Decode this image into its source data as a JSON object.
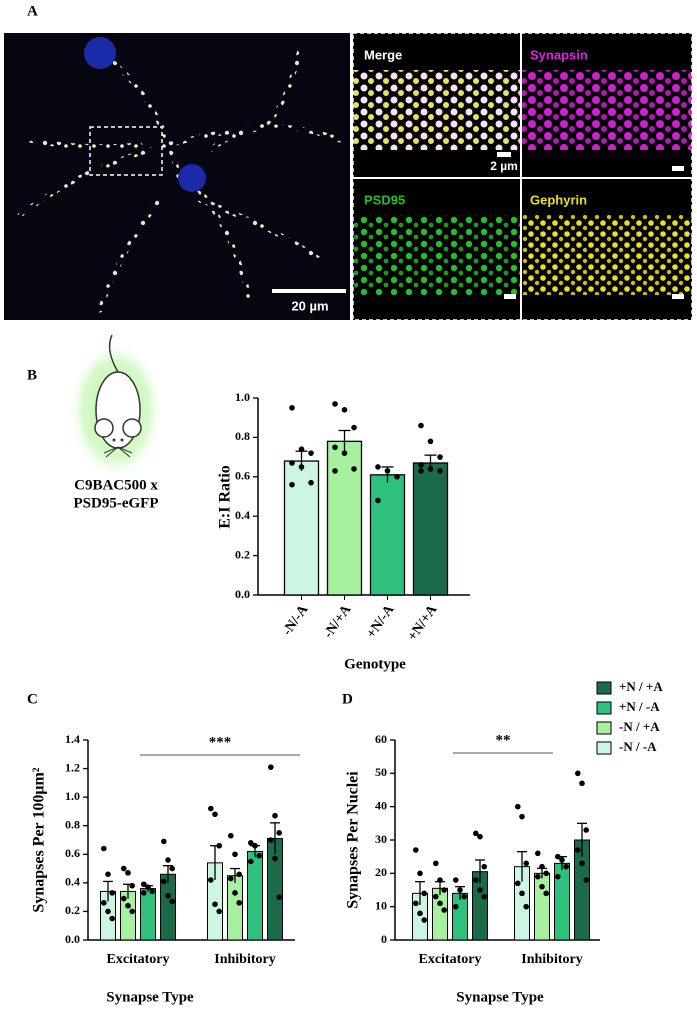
{
  "panel_labels": [
    "A",
    "B",
    "C",
    "D"
  ],
  "image_labels": {
    "merge": "Merge",
    "synapsin": "Synapsin",
    "psd95": "PSD95",
    "gephyrin": "Gephyrin",
    "scale_main": "20 µm",
    "scale_inset": "2 µm"
  },
  "mouse_caption": [
    "C9BAC500 x",
    "PSD95-eGFP"
  ],
  "chart_data": [
    {
      "type": "bar",
      "ylabel": "E:I Ratio",
      "xlabel": "Genotype",
      "categories": [
        "-N/-A",
        "-N/+A",
        "+N/-A",
        "+N/+A"
      ],
      "values": [
        0.68,
        0.78,
        0.61,
        0.67
      ],
      "errors": [
        0.05,
        0.055,
        0.04,
        0.04
      ],
      "points": [
        [
          0.95,
          0.74,
          0.72,
          0.67,
          0.65,
          0.57,
          0.56
        ],
        [
          0.97,
          0.94,
          0.85,
          0.75,
          0.72,
          0.64,
          0.63
        ],
        [
          0.65,
          0.63,
          0.6,
          0.48
        ],
        [
          0.86,
          0.78,
          0.7,
          0.66,
          0.64,
          0.63,
          0.63
        ]
      ],
      "colors": [
        "#ccf5e2",
        "#a6f0a0",
        "#2ec07c",
        "#1b6b4a"
      ],
      "ylim": [
        0,
        1
      ],
      "yticks": [
        {
          "value": 0,
          "label": "0.0"
        },
        0.2,
        0.4,
        0.6,
        0.8,
        {
          "value": 1,
          "label": "1.0"
        }
      ]
    },
    {
      "type": "grouped_bar",
      "ylabel": "Synapses Per 100μm²",
      "xlabel": "Synapse Type",
      "annotation": "***",
      "legend": false,
      "categories": [
        "Excitatory",
        "Inhibitory"
      ],
      "series": [
        {
          "name": "-N / -A",
          "color": "#ccf5e2",
          "values": [
            0.34,
            0.54
          ],
          "errors": [
            0.07,
            0.12
          ],
          "points": [
            [
              0.64,
              0.46,
              0.33,
              0.26,
              0.2,
              0.15
            ],
            [
              0.92,
              0.88,
              0.66,
              0.42,
              0.25,
              0.2
            ]
          ]
        },
        {
          "name": "-N / +A",
          "color": "#a6f0a0",
          "values": [
            0.34,
            0.45
          ],
          "errors": [
            0.05,
            0.05
          ],
          "points": [
            [
              0.5,
              0.47,
              0.38,
              0.29,
              0.24,
              0.2
            ],
            [
              0.73,
              0.6,
              0.46,
              0.43,
              0.33,
              0.26
            ]
          ]
        },
        {
          "name": "+N / -A",
          "color": "#2ec07c",
          "values": [
            0.36,
            0.62
          ],
          "errors": [
            0.02,
            0.04
          ],
          "points": [
            [
              0.39,
              0.37,
              0.34,
              0.33
            ],
            [
              0.68,
              0.66,
              0.59,
              0.55
            ]
          ]
        },
        {
          "name": "+N / +A",
          "color": "#1b6b4a",
          "values": [
            0.46,
            0.71
          ],
          "errors": [
            0.06,
            0.11
          ],
          "points": [
            [
              0.69,
              0.56,
              0.5,
              0.41,
              0.31,
              0.27
            ],
            [
              1.21,
              0.87,
              0.75,
              0.7,
              0.57,
              0.3
            ]
          ]
        }
      ],
      "ylim": [
        0,
        1.4
      ],
      "yticks": [
        {
          "value": 0,
          "label": "0.0"
        },
        0.2,
        0.4,
        0.6,
        0.8,
        {
          "value": 1,
          "label": "1.0"
        },
        1.2,
        1.4
      ]
    },
    {
      "type": "grouped_bar",
      "ylabel": "Synapses  Per Nuclei",
      "xlabel": "Synapse Type",
      "annotation": "**",
      "legend": true,
      "categories": [
        "Excitatory",
        "Inhibitory"
      ],
      "series": [
        {
          "name": "-N / -A",
          "color": "#ccf5e2",
          "values": [
            14,
            22
          ],
          "errors": [
            3.5,
            4.5
          ],
          "points": [
            [
              27,
              20,
              14,
              11,
              8,
              6
            ],
            [
              40,
              37,
              23,
              17,
              14,
              10
            ]
          ]
        },
        {
          "name": "-N / +A",
          "color": "#a6f0a0",
          "values": [
            15.5,
            20
          ],
          "errors": [
            2,
            1.5
          ],
          "points": [
            [
              23,
              18,
              15,
              13,
              11,
              9
            ],
            [
              26,
              22,
              20,
              19,
              16,
              14
            ]
          ]
        },
        {
          "name": "+N / -A",
          "color": "#2ec07c",
          "values": [
            14,
            23
          ],
          "errors": [
            2,
            2
          ],
          "points": [
            [
              18,
              15,
              13,
              10
            ],
            [
              25,
              24,
              22,
              19
            ]
          ]
        },
        {
          "name": "+N / +A",
          "color": "#1b6b4a",
          "values": [
            20.5,
            30
          ],
          "errors": [
            3.5,
            5
          ],
          "points": [
            [
              32,
              31,
              22,
              18,
              15,
              13
            ],
            [
              50,
              47,
              33,
              27,
              23,
              18
            ]
          ]
        }
      ],
      "ylim": [
        0,
        60
      ],
      "yticks": [
        0,
        10,
        20,
        30,
        40,
        50,
        60
      ]
    }
  ]
}
